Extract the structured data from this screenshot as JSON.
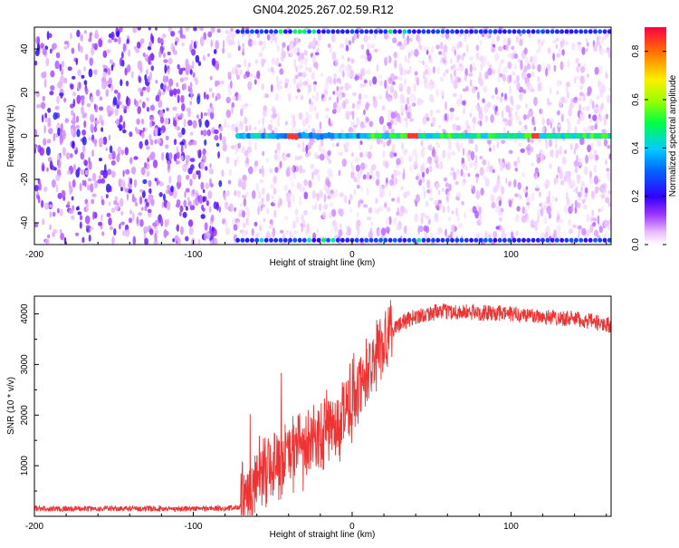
{
  "title": "GN04.2025.267.02.59.R12",
  "chart_data": [
    {
      "type": "heatmap",
      "title": "GN04.2025.267.02.59.R12",
      "xlabel": "Height of straight line (km)",
      "ylabel": "Frequency (Hz)",
      "xlim": [
        -200,
        163
      ],
      "ylim": [
        -50,
        50
      ],
      "xticks": [
        -200,
        -100,
        0,
        100
      ],
      "xtick_labels": [
        "-200",
        "-100",
        "0",
        "100"
      ],
      "yticks": [
        -40,
        -20,
        0,
        20,
        40
      ],
      "ytick_labels": [
        "-40",
        "-20",
        "0",
        "20",
        "40"
      ],
      "grid": false,
      "colorbar": {
        "label": "Normalized spectral amplitude",
        "range": [
          0,
          0.9
        ],
        "ticks": [
          0,
          0.2,
          0.4,
          0.6,
          0.8
        ],
        "tick_labels": [
          "0.0",
          "0.2",
          "0.4",
          "0.6",
          "0.8"
        ],
        "colormap": "rainbow (white → violet → blue → cyan → green → yellow → red)"
      },
      "description_values": {
        "noise_region_x": [
          -200,
          -80
        ],
        "carrier_frequency_hz": 0,
        "carrier_start_x": -72,
        "peak_x_positions": [
          -37,
          38,
          115
        ],
        "sideband_frequencies_hz": [
          -48,
          48
        ]
      }
    },
    {
      "type": "line",
      "xlabel": "Height of straight line (km)",
      "ylabel": "SNR (10 * v/v)",
      "xlim": [
        -200,
        163
      ],
      "ylim": [
        0,
        4350
      ],
      "xticks": [
        -200,
        -100,
        0,
        100
      ],
      "xtick_labels": [
        "-200",
        "-100",
        "0",
        "100"
      ],
      "yticks": [
        1000,
        2000,
        3000,
        4000
      ],
      "ytick_labels": [
        "1000",
        "2000",
        "3000",
        "4000"
      ],
      "grid": false,
      "series": [
        {
          "name": "SNR",
          "color": "#ee3333",
          "x": [
            -200,
            -150,
            -100,
            -75,
            -70,
            -65,
            -60,
            -55,
            -50,
            -45,
            -40,
            -35,
            -30,
            -25,
            -20,
            -15,
            -10,
            -5,
            0,
            5,
            10,
            15,
            20,
            25,
            30,
            35,
            40,
            50,
            60,
            80,
            100,
            120,
            140,
            163
          ],
          "y": [
            150,
            150,
            150,
            160,
            200,
            450,
            800,
            1000,
            1100,
            950,
            1150,
            1400,
            1250,
            1450,
            1500,
            1700,
            1800,
            2150,
            2350,
            2550,
            2850,
            3250,
            3450,
            3650,
            3800,
            3880,
            3950,
            4020,
            4050,
            4020,
            4000,
            3950,
            3900,
            3780
          ]
        }
      ]
    }
  ]
}
